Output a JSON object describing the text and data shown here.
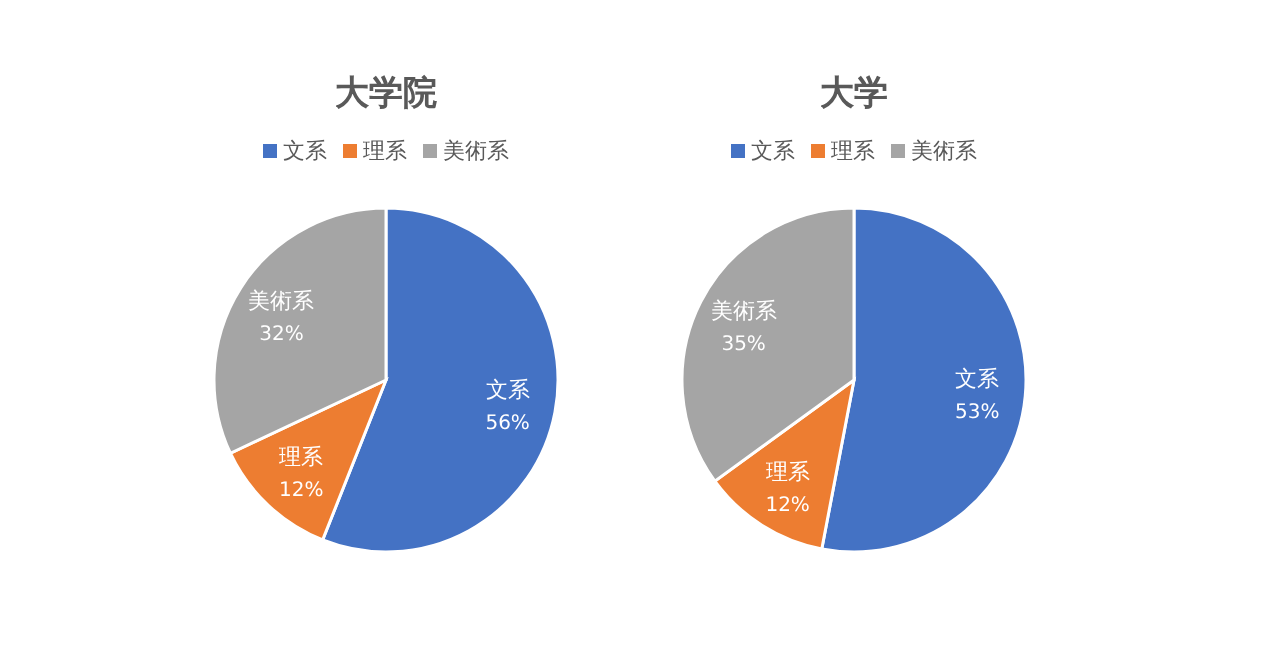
{
  "chart_data": [
    {
      "type": "pie",
      "title": "大学院",
      "categories": [
        "文系",
        "理系",
        "美術系"
      ],
      "values": [
        56,
        12,
        32
      ],
      "colors": [
        "#4472c4",
        "#ed7d31",
        "#a5a5a5"
      ],
      "value_labels": [
        "56%",
        "12%",
        "32%"
      ],
      "legend": "top"
    },
    {
      "type": "pie",
      "title": "大学",
      "categories": [
        "文系",
        "理系",
        "美術系"
      ],
      "values": [
        53,
        12,
        35
      ],
      "colors": [
        "#4472c4",
        "#ed7d31",
        "#a5a5a5"
      ],
      "value_labels": [
        "53%",
        "12%",
        "35%"
      ],
      "legend": "top"
    }
  ]
}
